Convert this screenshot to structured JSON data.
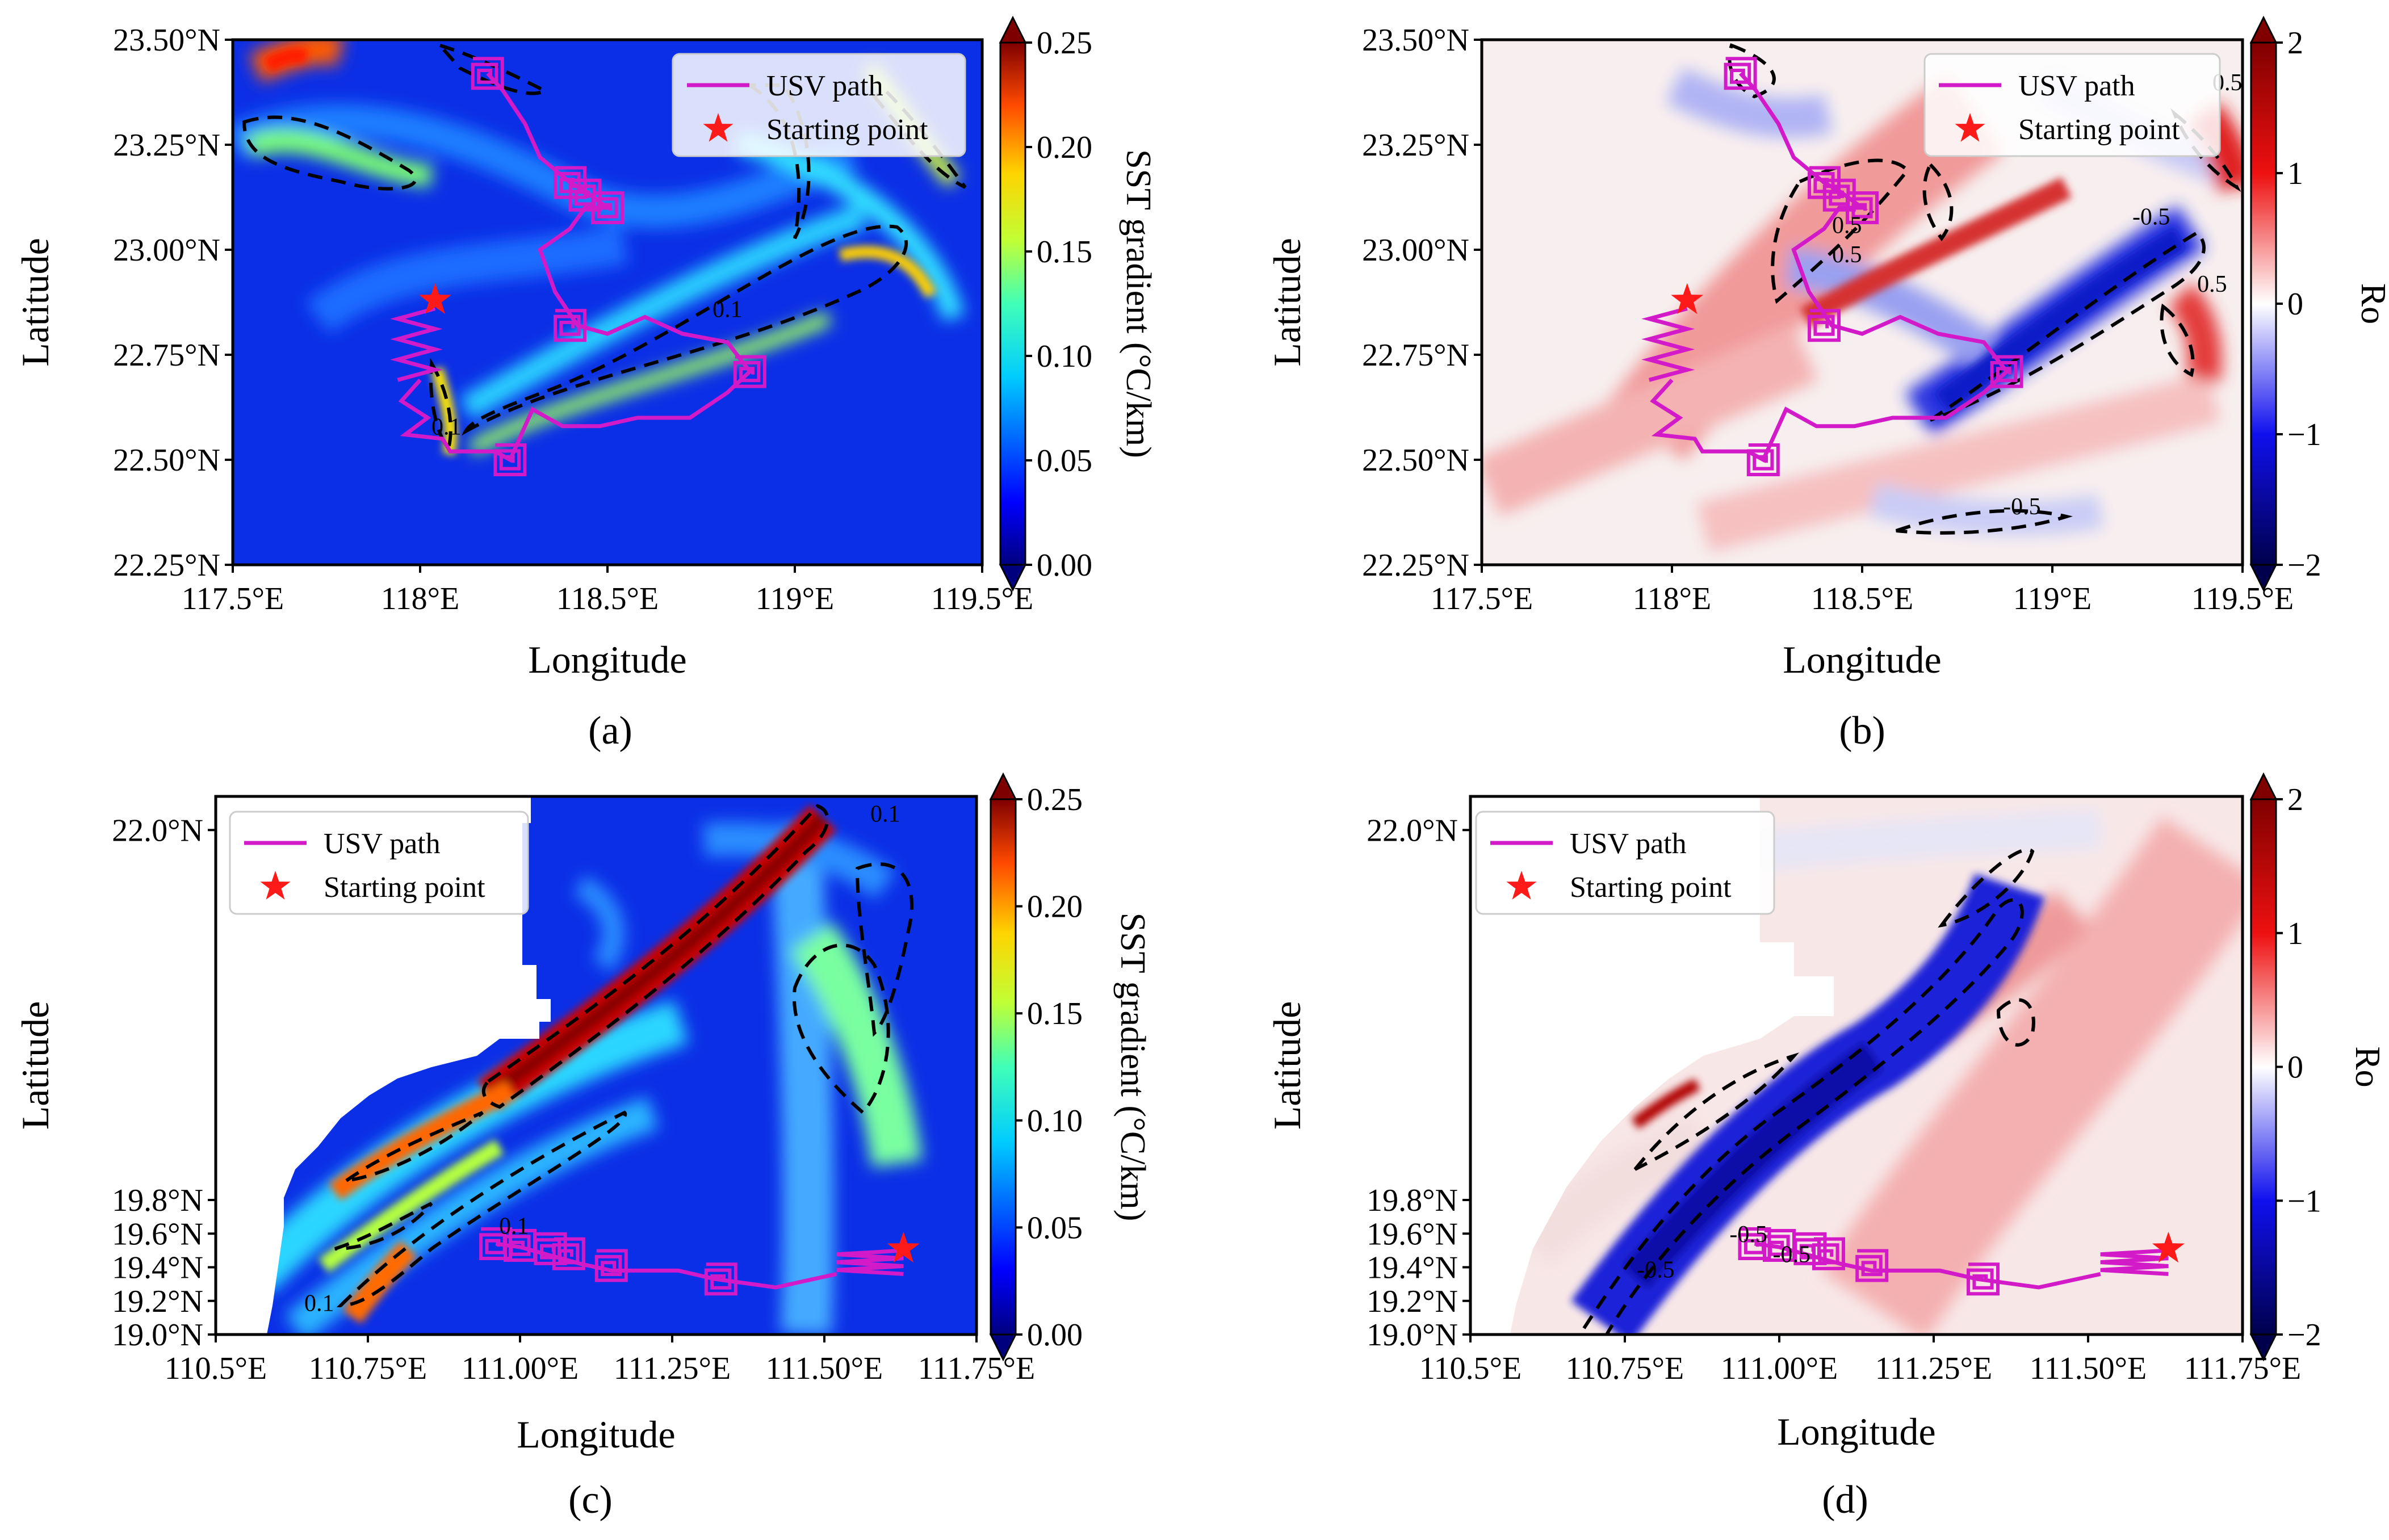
{
  "colors": {
    "usv_path": "#d21ac8",
    "star": "#ff1a1a",
    "contour": "#000000",
    "frame": "#000000"
  },
  "chart_data": [
    {
      "id": "a",
      "type": "heatmap",
      "panel_label": "(a)",
      "field": "sst",
      "colormap": "jet",
      "xlabel": "Longitude",
      "ylabel": "Latitude",
      "xlim": [
        117.5,
        119.5
      ],
      "ylim": [
        22.25,
        23.5
      ],
      "xticks": [
        117.5,
        118.0,
        118.5,
        119.0,
        119.5
      ],
      "xtick_labels": [
        "117.5°E",
        "118°E",
        "118.5°E",
        "119°E",
        "119.5°E"
      ],
      "yticks": [
        22.25,
        22.5,
        22.75,
        23.0,
        23.25,
        23.5
      ],
      "ytick_labels": [
        "22.25°N",
        "22.50°N",
        "22.75°N",
        "23.00°N",
        "23.25°N",
        "23.50°N"
      ],
      "colorbar": {
        "label": "SST gradient (°C/km)",
        "vmin": 0,
        "vmax": 0.25,
        "ticks": [
          0,
          0.05,
          0.1,
          0.15,
          0.2,
          0.25
        ],
        "tick_labels": [
          "0.00",
          "0.05",
          "0.10",
          "0.15",
          "0.20",
          "0.25"
        ]
      },
      "legend": {
        "position": "top-right",
        "entries": [
          "USV path",
          "Starting point"
        ]
      },
      "start": [
        118.04,
        22.88
      ],
      "zigzag": {
        "x0": 117.94,
        "x1": 118.04,
        "y_top": 22.86,
        "y_bottom": 22.69,
        "n": 7
      },
      "path": [
        [
          118.0,
          22.69
        ],
        [
          117.95,
          22.64
        ],
        [
          118.02,
          22.6
        ],
        [
          117.96,
          22.56
        ],
        [
          118.06,
          22.55
        ],
        [
          118.08,
          22.52
        ],
        [
          118.2,
          22.52
        ],
        [
          118.24,
          22.5
        ],
        [
          118.3,
          22.62
        ],
        [
          118.38,
          22.58
        ],
        [
          118.48,
          22.58
        ],
        [
          118.58,
          22.6
        ],
        [
          118.72,
          22.6
        ],
        [
          118.82,
          22.66
        ],
        [
          118.88,
          22.71
        ],
        [
          118.82,
          22.78
        ],
        [
          118.7,
          22.8
        ],
        [
          118.6,
          22.84
        ],
        [
          118.5,
          22.8
        ],
        [
          118.42,
          22.82
        ],
        [
          118.36,
          22.9
        ],
        [
          118.32,
          23.0
        ],
        [
          118.4,
          23.05
        ],
        [
          118.44,
          23.1
        ],
        [
          118.5,
          23.1
        ],
        [
          118.44,
          23.14
        ],
        [
          118.4,
          23.16
        ],
        [
          118.32,
          23.22
        ],
        [
          118.28,
          23.3
        ],
        [
          118.22,
          23.38
        ],
        [
          118.18,
          23.42
        ]
      ],
      "spirals": [
        [
          118.18,
          23.42
        ],
        [
          118.4,
          23.16
        ],
        [
          118.5,
          23.1
        ],
        [
          118.44,
          23.13
        ],
        [
          118.4,
          22.82
        ],
        [
          118.88,
          22.71
        ],
        [
          118.24,
          22.5
        ]
      ],
      "contour_labels": [
        {
          "text": "0.1",
          "x": 118.82,
          "y": 22.84
        },
        {
          "text": "0.1",
          "x": 118.07,
          "y": 22.56
        }
      ]
    },
    {
      "id": "b",
      "type": "heatmap",
      "panel_label": "(b)",
      "field": "ro",
      "colormap": "seismic",
      "xlabel": "Longitude",
      "ylabel": "Latitude",
      "xlim": [
        117.5,
        119.5
      ],
      "ylim": [
        22.25,
        23.5
      ],
      "xticks": [
        117.5,
        118.0,
        118.5,
        119.0,
        119.5
      ],
      "xtick_labels": [
        "117.5°E",
        "118°E",
        "118.5°E",
        "119°E",
        "119.5°E"
      ],
      "yticks": [
        22.25,
        22.5,
        22.75,
        23.0,
        23.25,
        23.5
      ],
      "ytick_labels": [
        "22.25°N",
        "22.50°N",
        "22.75°N",
        "23.00°N",
        "23.25°N",
        "23.50°N"
      ],
      "colorbar": {
        "label": "Ro",
        "vmin": -2,
        "vmax": 2,
        "ticks": [
          -2,
          -1,
          0,
          1,
          2
        ],
        "tick_labels": [
          "−2",
          "−1",
          "0",
          "1",
          "2"
        ]
      },
      "legend": {
        "position": "top-right",
        "entries": [
          "USV path",
          "Starting point"
        ]
      },
      "start": [
        118.04,
        22.88
      ],
      "zigzag": {
        "x0": 117.94,
        "x1": 118.04,
        "y_top": 22.86,
        "y_bottom": 22.69,
        "n": 7
      },
      "path": [
        [
          118.0,
          22.69
        ],
        [
          117.95,
          22.64
        ],
        [
          118.02,
          22.6
        ],
        [
          117.96,
          22.56
        ],
        [
          118.06,
          22.55
        ],
        [
          118.08,
          22.52
        ],
        [
          118.2,
          22.52
        ],
        [
          118.24,
          22.5
        ],
        [
          118.3,
          22.62
        ],
        [
          118.38,
          22.58
        ],
        [
          118.48,
          22.58
        ],
        [
          118.58,
          22.6
        ],
        [
          118.72,
          22.6
        ],
        [
          118.82,
          22.66
        ],
        [
          118.88,
          22.71
        ],
        [
          118.82,
          22.78
        ],
        [
          118.7,
          22.8
        ],
        [
          118.6,
          22.84
        ],
        [
          118.5,
          22.8
        ],
        [
          118.42,
          22.82
        ],
        [
          118.36,
          22.9
        ],
        [
          118.32,
          23.0
        ],
        [
          118.4,
          23.05
        ],
        [
          118.44,
          23.1
        ],
        [
          118.5,
          23.1
        ],
        [
          118.44,
          23.14
        ],
        [
          118.4,
          23.16
        ],
        [
          118.32,
          23.22
        ],
        [
          118.28,
          23.3
        ],
        [
          118.22,
          23.38
        ],
        [
          118.18,
          23.42
        ]
      ],
      "spirals": [
        [
          118.18,
          23.42
        ],
        [
          118.4,
          23.16
        ],
        [
          118.5,
          23.1
        ],
        [
          118.44,
          23.13
        ],
        [
          118.4,
          22.82
        ],
        [
          118.88,
          22.71
        ],
        [
          118.24,
          22.5
        ]
      ],
      "contour_labels": [
        {
          "text": "0.5",
          "x": 118.46,
          "y": 22.97
        },
        {
          "text": "0.5",
          "x": 118.46,
          "y": 23.04
        },
        {
          "text": "-0.5",
          "x": 119.26,
          "y": 23.06
        },
        {
          "text": "0.5",
          "x": 119.42,
          "y": 22.9
        },
        {
          "text": "0.5",
          "x": 119.46,
          "y": 23.38
        },
        {
          "text": "-0.5",
          "x": 118.92,
          "y": 22.37
        }
      ]
    },
    {
      "id": "c",
      "type": "heatmap",
      "panel_label": "(c)",
      "field": "sst",
      "colormap": "jet",
      "xlabel": "Longitude",
      "ylabel": "Latitude",
      "xlim": [
        110.5,
        111.75
      ],
      "ylim": [
        19.0,
        22.2
      ],
      "xticks": [
        110.5,
        110.75,
        111.0,
        111.25,
        111.5,
        111.75
      ],
      "xtick_labels": [
        "110.5°E",
        "110.75°E",
        "111.00°E",
        "111.25°E",
        "111.50°E",
        "111.75°E"
      ],
      "yticks": [
        19.0,
        19.2,
        19.4,
        19.6,
        19.8,
        22.0
      ],
      "ytick_labels": [
        "19.0°N",
        "19.2°N",
        "19.4°N",
        "19.6°N",
        "19.8°N",
        "22.0°N"
      ],
      "colorbar": {
        "label": "SST gradient (°C/km)",
        "vmin": 0,
        "vmax": 0.25,
        "ticks": [
          0,
          0.05,
          0.1,
          0.15,
          0.2,
          0.25
        ],
        "tick_labels": [
          "0.00",
          "0.05",
          "0.10",
          "0.15",
          "0.20",
          "0.25"
        ]
      },
      "legend": {
        "position": "top-left",
        "entries": [
          "USV path",
          "Starting point"
        ]
      },
      "start": [
        111.63,
        19.51
      ],
      "zigzag": {
        "x0": 111.52,
        "x1": 111.63,
        "y_top": 19.5,
        "y_bottom": 19.36,
        "n": 6
      },
      "path": [
        [
          111.52,
          19.36
        ],
        [
          111.42,
          19.28
        ],
        [
          111.32,
          19.33
        ],
        [
          111.26,
          19.38
        ],
        [
          111.15,
          19.38
        ],
        [
          111.1,
          19.42
        ],
        [
          111.05,
          19.47
        ],
        [
          111.0,
          19.52
        ],
        [
          110.96,
          19.54
        ]
      ],
      "spirals": [
        [
          111.33,
          19.33
        ],
        [
          111.15,
          19.41
        ],
        [
          111.08,
          19.48
        ],
        [
          111.05,
          19.51
        ],
        [
          111.0,
          19.53
        ],
        [
          110.96,
          19.54
        ]
      ],
      "contour_labels": [
        {
          "text": "0.1",
          "x": 111.6,
          "y": 22.05
        },
        {
          "text": "0.1",
          "x": 110.99,
          "y": 19.6
        },
        {
          "text": "0.1",
          "x": 110.67,
          "y": 19.14
        }
      ]
    },
    {
      "id": "d",
      "type": "heatmap",
      "panel_label": "(d)",
      "field": "ro",
      "colormap": "seismic",
      "xlabel": "Longitude",
      "ylabel": "Latitude",
      "xlim": [
        110.5,
        111.75
      ],
      "ylim": [
        19.0,
        22.2
      ],
      "xticks": [
        110.5,
        110.75,
        111.0,
        111.25,
        111.5,
        111.75
      ],
      "xtick_labels": [
        "110.5°E",
        "110.75°E",
        "111.00°E",
        "111.25°E",
        "111.50°E",
        "111.75°E"
      ],
      "yticks": [
        19.0,
        19.2,
        19.4,
        19.6,
        19.8,
        22.0
      ],
      "ytick_labels": [
        "19.0°N",
        "19.2°N",
        "19.4°N",
        "19.6°N",
        "19.8°N",
        "22.0°N"
      ],
      "colorbar": {
        "label": "Ro",
        "vmin": -2,
        "vmax": 2,
        "ticks": [
          -2,
          -1,
          0,
          1,
          2
        ],
        "tick_labels": [
          "−2",
          "−1",
          "0",
          "1",
          "2"
        ]
      },
      "legend": {
        "position": "top-left",
        "entries": [
          "USV path",
          "Starting point"
        ]
      },
      "start": [
        111.63,
        19.51
      ],
      "zigzag": {
        "x0": 111.52,
        "x1": 111.63,
        "y_top": 19.5,
        "y_bottom": 19.36,
        "n": 6
      },
      "path": [
        [
          111.52,
          19.36
        ],
        [
          111.42,
          19.28
        ],
        [
          111.32,
          19.33
        ],
        [
          111.26,
          19.38
        ],
        [
          111.15,
          19.38
        ],
        [
          111.1,
          19.42
        ],
        [
          111.05,
          19.47
        ],
        [
          111.0,
          19.52
        ],
        [
          110.96,
          19.54
        ]
      ],
      "spirals": [
        [
          111.33,
          19.33
        ],
        [
          111.15,
          19.41
        ],
        [
          111.08,
          19.48
        ],
        [
          111.05,
          19.51
        ],
        [
          111.0,
          19.53
        ],
        [
          110.96,
          19.54
        ]
      ],
      "contour_labels": [
        {
          "text": "-0.5",
          "x": 110.95,
          "y": 19.55
        },
        {
          "text": "-0.5",
          "x": 111.02,
          "y": 19.43
        },
        {
          "text": "-0.5",
          "x": 110.8,
          "y": 19.34
        }
      ]
    }
  ]
}
